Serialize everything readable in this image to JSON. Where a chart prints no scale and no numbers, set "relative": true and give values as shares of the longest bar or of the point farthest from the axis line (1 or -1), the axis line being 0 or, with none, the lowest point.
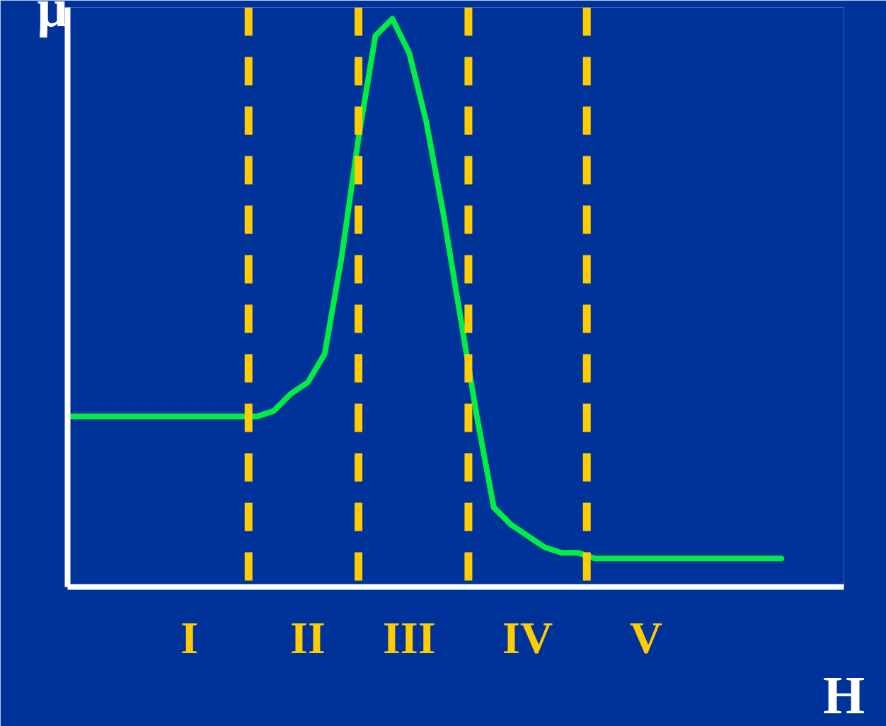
{
  "chart_data": {
    "type": "line",
    "relative": true,
    "xlabel": "H",
    "ylabel": "μ",
    "categories": [
      null,
      null,
      null,
      null,
      null,
      null,
      null,
      "I",
      null,
      null,
      null,
      null,
      null,
      null,
      "II",
      null,
      null,
      null,
      null,
      null,
      "III",
      null,
      null,
      null,
      null,
      null,
      null,
      "IV",
      null,
      null,
      null,
      null,
      null,
      null,
      "V",
      null,
      null,
      null,
      null,
      null,
      null,
      null,
      null
    ],
    "series": [
      {
        "color": "#00ee44",
        "values": [
          0.3,
          0.3,
          0.3,
          0.3,
          0.3,
          0.3,
          0.3,
          0.3,
          0.3,
          0.3,
          0.3,
          0.3,
          0.31,
          0.34,
          0.36,
          0.41,
          0.58,
          0.79,
          0.97,
          1,
          0.94,
          0.82,
          0.66,
          0.48,
          0.3,
          0.14,
          0.11,
          0.09,
          0.07,
          0.06,
          0.06,
          0.05,
          0.05,
          0.05,
          0.05,
          0.05,
          0.05,
          0.05,
          0.05,
          0.05,
          0.05,
          0.05,
          0.05
        ]
      }
    ]
  }
}
